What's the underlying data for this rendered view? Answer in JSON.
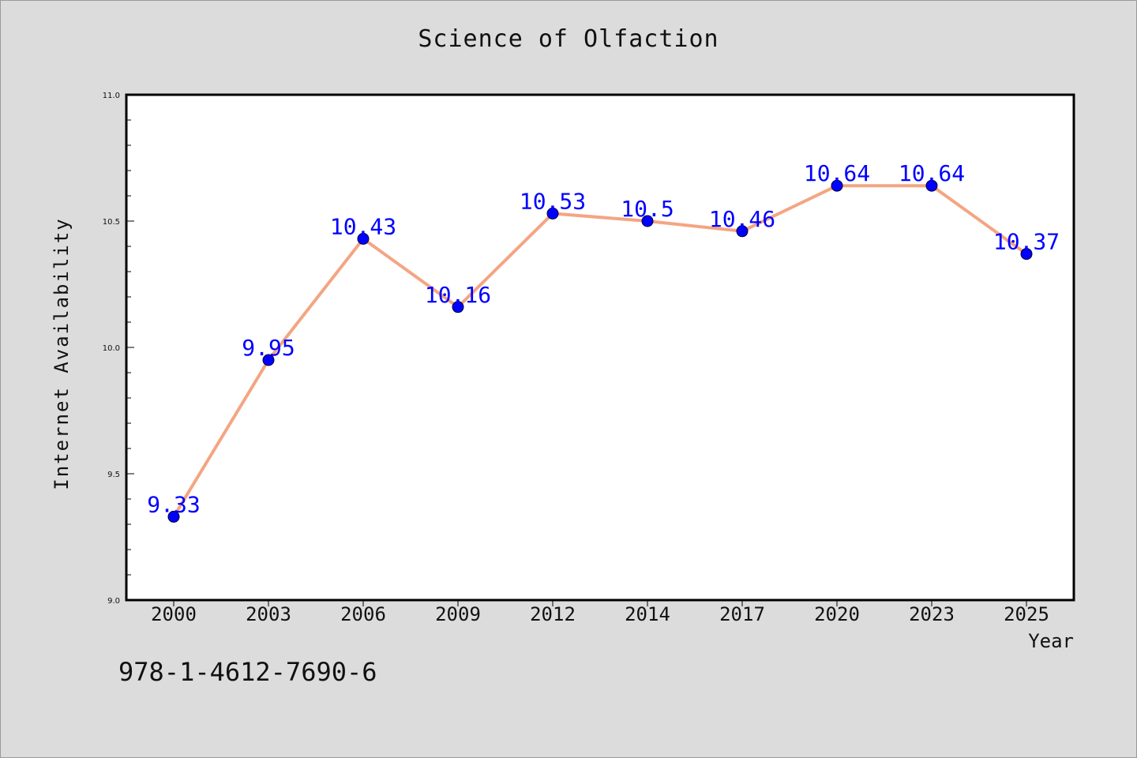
{
  "page": {
    "title": "Science of Olfaction",
    "isbn": "978-1-4612-7690-6"
  },
  "chart_data": {
    "type": "line",
    "title": "Science of Olfaction",
    "xlabel": "Year",
    "ylabel": "Internet Availability",
    "categories": [
      "2000",
      "2003",
      "2006",
      "2009",
      "2012",
      "2014",
      "2017",
      "2020",
      "2023",
      "2025"
    ],
    "series": [
      {
        "values": [
          9.33,
          9.95,
          10.43,
          10.16,
          10.53,
          10.5,
          10.46,
          10.64,
          10.64,
          10.37
        ],
        "labels": [
          "9.33",
          "9.95",
          "10.43",
          "10.16",
          "10.53",
          "10.5",
          "10.46",
          "10.64",
          "10.64",
          "10.37"
        ]
      }
    ],
    "ylim": [
      9.0,
      11.0
    ],
    "yticks": [
      "9.0",
      "9.5",
      "10.0",
      "10.5",
      "11.0"
    ],
    "grid": false,
    "line_color": "#f4a582",
    "marker_color": "#0000ff",
    "label_color": "#0000ff"
  }
}
